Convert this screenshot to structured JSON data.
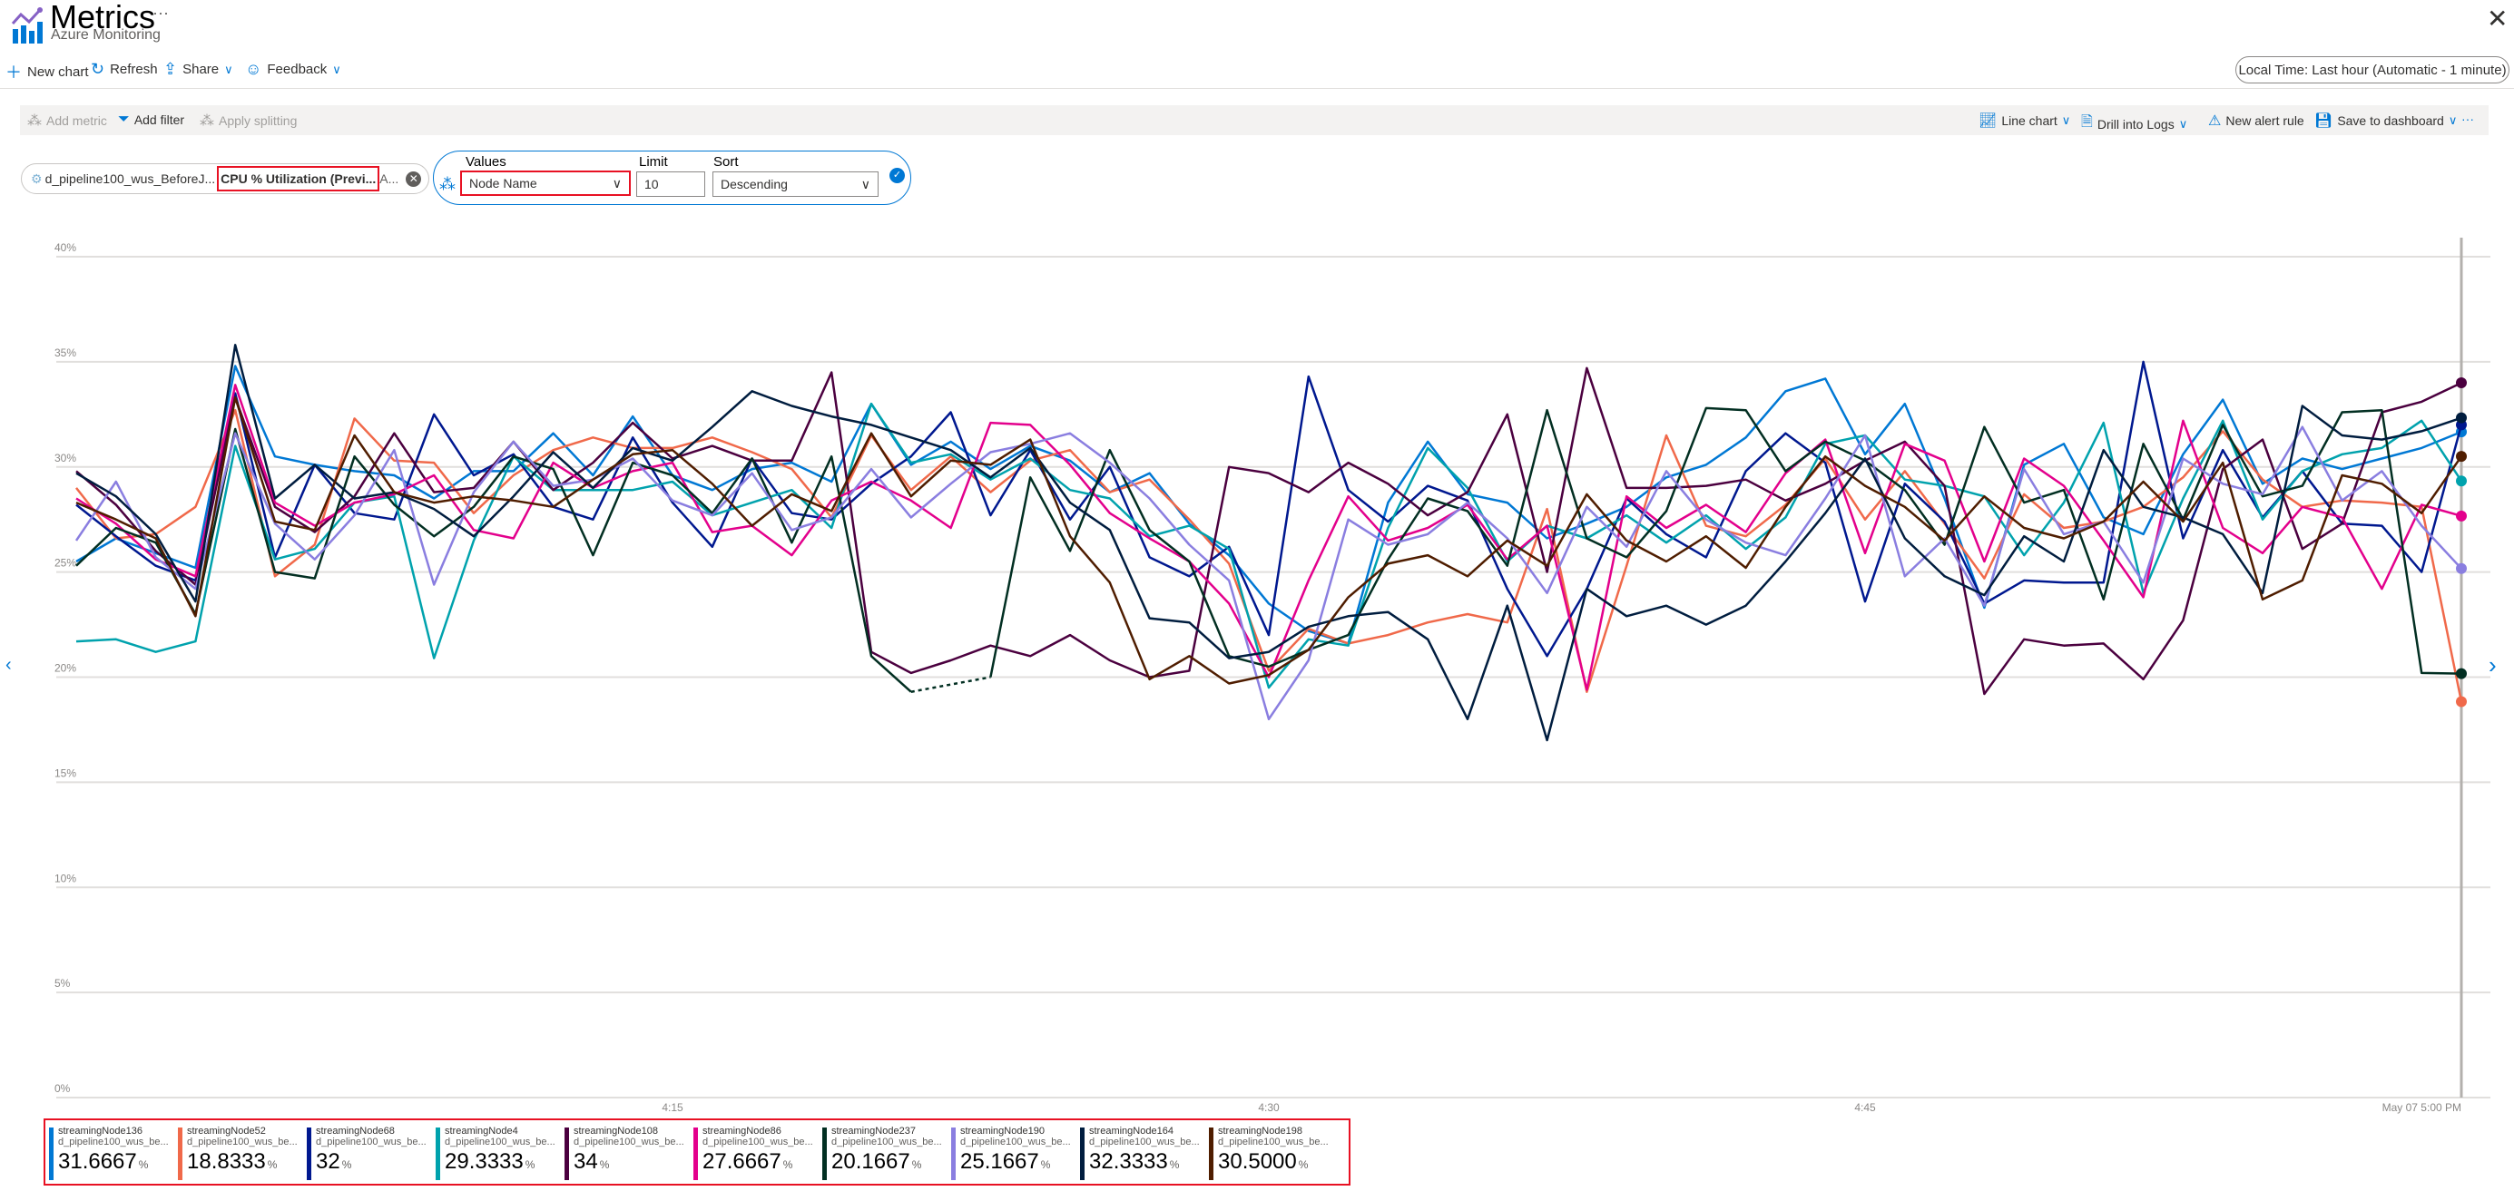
{
  "header": {
    "title": "Metrics",
    "subtitle": "Azure Monitoring",
    "more": "···",
    "close": "✕"
  },
  "commands": {
    "new_chart": "New chart",
    "refresh": "Refresh",
    "share": "Share",
    "feedback": "Feedback",
    "time_range": "Local Time: Last hour (Automatic - 1 minute)"
  },
  "toolbar": {
    "add_metric": "Add metric",
    "add_filter": "Add filter",
    "apply_splitting": "Apply splitting",
    "line_chart": "Line chart",
    "drill_logs": "Drill into Logs",
    "new_alert": "New alert rule",
    "save_dashboard": "Save to dashboard",
    "more": "···"
  },
  "metric_pill": {
    "resource": "d_pipeline100_wus_BeforeJ...",
    "metric": "CPU % Utilization (Previ...",
    "agg": "A..."
  },
  "splitting": {
    "values_label": "Values",
    "values_selected": "Node Name",
    "limit_label": "Limit",
    "limit_value": "10",
    "sort_label": "Sort",
    "sort_selected": "Descending"
  },
  "chart_data": {
    "type": "line",
    "y_ticks": [
      "0%",
      "5%",
      "10%",
      "15%",
      "20%",
      "25%",
      "30%",
      "35%",
      "40%"
    ],
    "ylim": [
      0,
      40
    ],
    "x_ticks": [
      {
        "label": "4:15",
        "minute": 15
      },
      {
        "label": "4:30",
        "minute": 30
      },
      {
        "label": "4:45",
        "minute": 45
      },
      {
        "label": "May 07 5:00 PM",
        "minute": 60
      }
    ],
    "x_start": "4:00",
    "x_interval": "1 minute",
    "grid": true,
    "series": [
      {
        "name": "streamingNode136",
        "resource": "d_pipeline100_wus_be...",
        "value": "31.6667",
        "color": "#0078d4",
        "values": [
          25.5,
          26.6,
          25.9,
          25.2,
          34.8,
          30.5,
          30.1,
          29.8,
          29.6,
          28.5,
          29.8,
          29.8,
          31.6,
          29.6,
          32.4,
          29.6,
          28.9,
          29.9,
          30.2,
          29.3,
          33,
          30.1,
          31.2,
          29.9,
          31,
          30.3,
          28.8,
          29.7,
          27.3,
          25.8,
          23.5,
          22.2,
          21.6,
          28.3,
          31.2,
          28.7,
          28.3,
          26.6,
          27.3,
          28.1,
          29.5,
          30.1,
          31.4,
          33.6,
          34.2,
          30.6,
          33,
          28.5,
          23.3,
          30.1,
          31.1,
          27.6,
          26.8,
          30.6,
          33.2,
          29.2,
          30.4,
          29.9,
          30.4,
          30.9,
          31.6667
        ]
      },
      {
        "name": "streamingNode52",
        "resource": "d_pipeline100_wus_be...",
        "value": "18.8333",
        "color": "#f0694a",
        "values": [
          29,
          26.6,
          26.8,
          28.1,
          32.7,
          24.8,
          26.3,
          32.3,
          30.3,
          30.2,
          27.8,
          29.6,
          30.8,
          31.4,
          30.9,
          30.9,
          31.4,
          30.7,
          29.9,
          27.6,
          31.5,
          28.9,
          30.5,
          28.8,
          30.3,
          30.8,
          28.8,
          29.4,
          27.5,
          25.4,
          20.3,
          22.3,
          21.6,
          22,
          22.6,
          23,
          22.6,
          28,
          19.3,
          25.3,
          31.5,
          27.2,
          26.7,
          28.2,
          30.4,
          27.5,
          29.8,
          27.3,
          24.7,
          28.7,
          27.1,
          27.4,
          28.1,
          29.5,
          31.7,
          29.4,
          28.1,
          28.4,
          28.3,
          28.1,
          18.8333
        ]
      },
      {
        "name": "streamingNode68",
        "resource": "d_pipeline100_wus_be...",
        "value": "32",
        "color": "#00188f",
        "values": [
          28.2,
          26.7,
          25.3,
          24.6,
          33.5,
          25.7,
          30.1,
          27.8,
          27.5,
          32.5,
          29.6,
          30.6,
          28.1,
          27.5,
          31.4,
          28.3,
          26.2,
          30.4,
          27.8,
          27.5,
          29.2,
          30.5,
          32.6,
          27.7,
          30.8,
          27.5,
          30,
          25.7,
          24.8,
          26.2,
          22,
          34.3,
          28.9,
          27.4,
          29.1,
          28.4,
          24.2,
          21,
          24.2,
          28.5,
          26.8,
          25.7,
          29.8,
          31.6,
          30.2,
          23.6,
          29.2,
          27.4,
          23.5,
          24.6,
          24.5,
          24.5,
          35,
          26.6,
          30.8,
          27.6,
          29.8,
          27.3,
          27.2,
          25,
          32
        ]
      },
      {
        "name": "streamingNode4",
        "resource": "d_pipeline100_wus_be...",
        "value": "29.3333",
        "color": "#00a2ad",
        "values": [
          21.7,
          21.8,
          21.2,
          21.7,
          31,
          25.6,
          26.1,
          28.3,
          28.6,
          20.9,
          26.5,
          30.5,
          28.9,
          28.9,
          28.9,
          29.3,
          27.7,
          28.3,
          28.9,
          27.1,
          33,
          30.2,
          30.6,
          29.4,
          30.4,
          28.9,
          28.5,
          26.7,
          27.2,
          26.1,
          19.5,
          21.8,
          21.5,
          27.1,
          30.9,
          29,
          25.5,
          27.2,
          26.6,
          27.7,
          26.4,
          27.7,
          26.1,
          27.6,
          31.1,
          31.5,
          29.4,
          29.1,
          28.6,
          25.8,
          28.3,
          32.1,
          24,
          28.5,
          32.2,
          27.5,
          29.8,
          30.6,
          30.9,
          32.2,
          29.3333
        ]
      },
      {
        "name": "streamingNode108",
        "resource": "d_pipeline100_wus_be...",
        "value": "34",
        "color": "#4b003f",
        "values": [
          29.8,
          28.2,
          26,
          24.4,
          33.3,
          28.1,
          26.9,
          28.6,
          31.6,
          28.8,
          29,
          31.2,
          28.9,
          30.2,
          32.1,
          30.4,
          31,
          30.3,
          30.3,
          34.5,
          21.2,
          20.2,
          20.8,
          21.5,
          21,
          22,
          20.8,
          20,
          20.3,
          30,
          29.7,
          28.8,
          30.2,
          29.2,
          27.7,
          28.8,
          32.5,
          25,
          34.7,
          29,
          29,
          29.1,
          29.4,
          28.4,
          29.2,
          30.3,
          31.2,
          29.1,
          19.2,
          21.8,
          21.5,
          21.6,
          19.9,
          22.7,
          29.9,
          31.3,
          26.1,
          27.3,
          32.6,
          33.1,
          34
        ]
      },
      {
        "name": "streamingNode86",
        "resource": "d_pipeline100_wus_be...",
        "value": "27.6667",
        "color": "#e3008c",
        "values": [
          28.5,
          27.3,
          25.6,
          24.8,
          33.9,
          28.3,
          27.2,
          28.3,
          28.7,
          29.6,
          27,
          26.6,
          30.2,
          29,
          29.8,
          30.2,
          26.9,
          27.2,
          25.8,
          28.4,
          29.3,
          28.4,
          27.1,
          32.1,
          32,
          30.1,
          27.8,
          26.6,
          25.5,
          23.5,
          20,
          24.6,
          28.6,
          26.5,
          27.1,
          28.2,
          25.6,
          27.2,
          19.4,
          28.6,
          27.1,
          28.2,
          26.9,
          29.7,
          31.3,
          25.9,
          31.1,
          30.3,
          25.5,
          30.4,
          29.1,
          26.5,
          23.8,
          32.2,
          27.1,
          25.9,
          28.1,
          27.6,
          24.2,
          28.2,
          27.6667
        ]
      },
      {
        "name": "streamingNode237",
        "resource": "d_pipeline100_wus_be...",
        "value": "20.1667",
        "color": "#022f22",
        "values": [
          25.3,
          27.1,
          26.4,
          23,
          31.8,
          25,
          24.7,
          30.5,
          28.2,
          26.7,
          28.1,
          30.5,
          29.9,
          25.8,
          30.2,
          29.6,
          27.8,
          30.4,
          26.4,
          30.5,
          21,
          19.3,
          null,
          20,
          29.5,
          26,
          30.8,
          27,
          25.5,
          21,
          20.5,
          21.3,
          22,
          25.6,
          28.5,
          27.9,
          25.3,
          32.7,
          26.6,
          25.7,
          27.9,
          32.8,
          32.7,
          29.8,
          31.2,
          30.3,
          28.9,
          26.3,
          31.9,
          28.3,
          28.9,
          23.7,
          31.1,
          27.5,
          32,
          28.6,
          29.1,
          32.6,
          32.7,
          20.2,
          20.1667
        ]
      },
      {
        "name": "streamingNode190",
        "resource": "d_pipeline100_wus_be...",
        "value": "25.1667",
        "color": "#8a7ee0",
        "values": [
          26.5,
          29.3,
          25.7,
          24.2,
          31.6,
          27.3,
          25.6,
          27.7,
          30.8,
          24.4,
          28.8,
          31.2,
          29.1,
          29.4,
          30.4,
          28.4,
          27.7,
          29.7,
          27,
          27.6,
          29.9,
          27.6,
          29.2,
          30.7,
          31.1,
          31.6,
          30.2,
          28.5,
          26.3,
          24.6,
          18,
          20.8,
          27.5,
          26.3,
          26.8,
          28.3,
          26.6,
          24,
          28.1,
          26.2,
          29.8,
          27.5,
          26.4,
          25.8,
          28.5,
          31.5,
          24.8,
          26.6,
          23.4,
          29.9,
          26.8,
          27.4,
          24.5,
          30.4,
          29.2,
          28.7,
          31.9,
          28.4,
          29.8,
          27.2,
          25.1667
        ]
      },
      {
        "name": "streamingNode164",
        "resource": "d_pipeline100_wus_be...",
        "value": "32.3333",
        "color": "#001d3f",
        "values": [
          29.7,
          28.6,
          26.8,
          23.6,
          35.8,
          28.5,
          30.1,
          28.5,
          28.8,
          28,
          26.7,
          28.6,
          30.7,
          29,
          30.9,
          30.3,
          31.9,
          33.6,
          32.9,
          32.4,
          32,
          31.4,
          30.8,
          29.5,
          30.9,
          28.3,
          27,
          22.8,
          22.6,
          20.9,
          21.2,
          22.4,
          22.9,
          23.1,
          21.8,
          18,
          23.4,
          17,
          24.2,
          22.9,
          23.4,
          22.5,
          23.4,
          25.5,
          27.8,
          30.4,
          26.6,
          24.8,
          23.9,
          26.7,
          25.5,
          30.8,
          28.1,
          27.6,
          26.8,
          24,
          32.9,
          31.5,
          31.3,
          31.7,
          32.3333
        ]
      },
      {
        "name": "streamingNode198",
        "resource": "d_pipeline100_wus_be...",
        "value": "30.5000",
        "color": "#4f1d00",
        "values": [
          28.3,
          27.5,
          26.6,
          22.9,
          33.3,
          27.4,
          27,
          31.5,
          28.8,
          28.3,
          28.6,
          28.4,
          28.1,
          29.4,
          30.6,
          30.8,
          29.2,
          27.2,
          28.7,
          27.9,
          31.6,
          28.6,
          30.3,
          30.1,
          31.3,
          26.7,
          24.5,
          19.9,
          21,
          19.7,
          20.1,
          21.3,
          23.8,
          25.4,
          25.8,
          24.8,
          26.5,
          25.3,
          28.7,
          26.5,
          25.5,
          26.7,
          25.2,
          28.1,
          30.5,
          29.1,
          28.1,
          26.5,
          28.6,
          27.1,
          26.6,
          27.4,
          29.3,
          27.4,
          30.2,
          23.7,
          24.6,
          29.6,
          29.2,
          27.8,
          30.5
        ]
      }
    ]
  },
  "legend_unit": "%",
  "nav": {
    "prev": "‹",
    "next": "›"
  }
}
